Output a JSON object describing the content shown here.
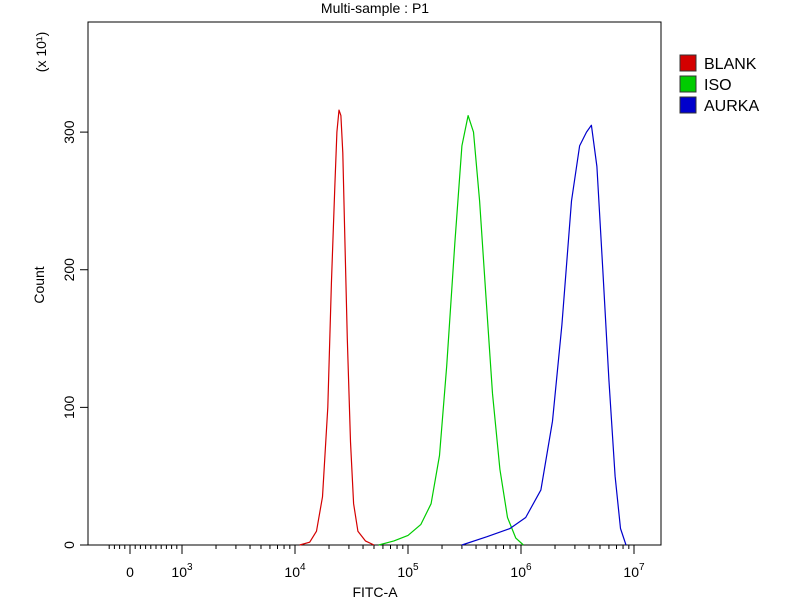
{
  "chart_data": {
    "type": "line",
    "title": "Multi-sample : P1",
    "xlabel": "FITC-A",
    "ylabel": "Count",
    "y_multiplier_label": "(x 10¹)",
    "x_scale": "biexponential",
    "x_tick_labels": [
      {
        "value": 0,
        "label": "0",
        "exp": ""
      },
      {
        "value": 1000,
        "label": "10",
        "exp": "3"
      },
      {
        "value": 10000,
        "label": "10",
        "exp": "4"
      },
      {
        "value": 100000,
        "label": "10",
        "exp": "5"
      },
      {
        "value": 1000000,
        "label": "10",
        "exp": "6"
      },
      {
        "value": 10000000,
        "label": "10",
        "exp": "7"
      }
    ],
    "y_ticks": [
      0,
      100,
      200,
      300
    ],
    "ylim": [
      0,
      380
    ],
    "grid": false,
    "legend": "right",
    "series": [
      {
        "name": "BLANK",
        "color": "#d40000",
        "x": [
          11000,
          13500,
          15500,
          17500,
          19500,
          21000,
          22500,
          23500,
          24500,
          25500,
          26500,
          27500,
          29000,
          31000,
          33000,
          36000,
          42000,
          50000
        ],
        "y": [
          0,
          2,
          10,
          35,
          100,
          190,
          260,
          300,
          316,
          312,
          285,
          230,
          150,
          75,
          30,
          10,
          3,
          0
        ]
      },
      {
        "name": "ISO",
        "color": "#00cc00",
        "x": [
          55000,
          75000,
          100000,
          130000,
          160000,
          190000,
          220000,
          260000,
          300000,
          340000,
          380000,
          430000,
          490000,
          560000,
          650000,
          760000,
          900000,
          1050000
        ],
        "y": [
          0,
          3,
          7,
          15,
          30,
          65,
          130,
          220,
          290,
          312,
          300,
          250,
          180,
          110,
          55,
          20,
          5,
          0
        ]
      },
      {
        "name": "AURKA",
        "color": "#0000cc",
        "x": [
          300000,
          500000,
          800000,
          1100000,
          1500000,
          1900000,
          2300000,
          2800000,
          3300000,
          3800000,
          4200000,
          4700000,
          5300000,
          6000000,
          6800000,
          7600000,
          8500000
        ],
        "y": [
          0,
          6,
          12,
          20,
          40,
          90,
          160,
          250,
          290,
          300,
          305,
          275,
          200,
          120,
          50,
          12,
          0
        ]
      }
    ]
  }
}
